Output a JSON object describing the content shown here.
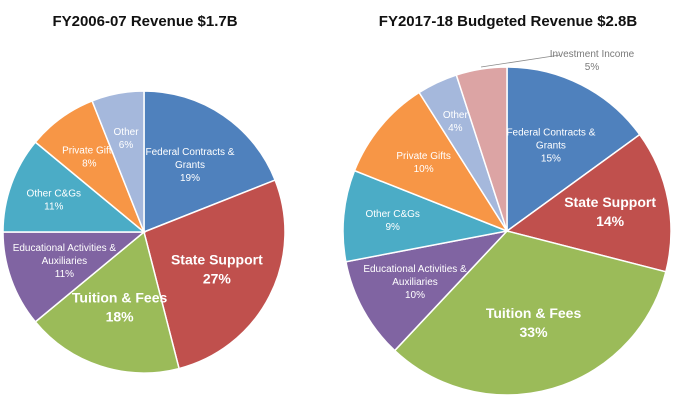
{
  "colors": {
    "federal": "#4f81bd",
    "state": "#c0504d",
    "tuition": "#9bbb59",
    "educational": "#8064a2",
    "other_cg": "#4bacc6",
    "private": "#f79646",
    "other": "#a5b8dc",
    "investment": "#dca4a4",
    "stroke": "#ffffff",
    "callout": "#8a8a8a"
  },
  "chart_data": [
    {
      "type": "pie",
      "title": "FY2006-07 Revenue $1.7B",
      "slices": [
        {
          "label": "Federal Contracts & Grants",
          "lines": [
            "Federal Contracts &",
            "Grants"
          ],
          "pct_label": "19%",
          "value": 19,
          "color": "#4f81bd"
        },
        {
          "label": "State Support",
          "lines": [
            "State Support"
          ],
          "pct_label": "27%",
          "value": 27,
          "color": "#c0504d"
        },
        {
          "label": "Tuition & Fees",
          "lines": [
            "Tuition & Fees"
          ],
          "pct_label": "18%",
          "value": 18,
          "color": "#9bbb59"
        },
        {
          "label": "Educational Activities & Auxiliaries",
          "lines": [
            "Educational Activities &",
            "Auxiliaries"
          ],
          "pct_label": "11%",
          "value": 11,
          "color": "#8064a2"
        },
        {
          "label": "Other C&Gs",
          "lines": [
            "Other C&Gs"
          ],
          "pct_label": "11%",
          "value": 11,
          "color": "#4bacc6"
        },
        {
          "label": "Private Gifts",
          "lines": [
            "Private Gifts"
          ],
          "pct_label": "8%",
          "value": 8,
          "color": "#f79646"
        },
        {
          "label": "Other",
          "lines": [
            "Other"
          ],
          "pct_label": "6%",
          "value": 6,
          "color": "#a5b8dc"
        }
      ]
    },
    {
      "type": "pie",
      "title": "FY2017-18 Budgeted Revenue $2.8B",
      "slices": [
        {
          "label": "Federal Contracts & Grants",
          "lines": [
            "Federal Contracts &",
            "Grants"
          ],
          "pct_label": "15%",
          "value": 15,
          "color": "#4f81bd"
        },
        {
          "label": "State Support",
          "lines": [
            "State Support"
          ],
          "pct_label": "14%",
          "value": 14,
          "color": "#c0504d"
        },
        {
          "label": "Tuition & Fees",
          "lines": [
            "Tuition & Fees"
          ],
          "pct_label": "33%",
          "value": 33,
          "color": "#9bbb59"
        },
        {
          "label": "Educational Activities & Auxiliaries",
          "lines": [
            "Educational Activities &",
            "Auxiliaries"
          ],
          "pct_label": "10%",
          "value": 10,
          "color": "#8064a2"
        },
        {
          "label": "Other C&Gs",
          "lines": [
            "Other C&Gs"
          ],
          "pct_label": "9%",
          "value": 9,
          "color": "#4bacc6"
        },
        {
          "label": "Private Gifts",
          "lines": [
            "Private Gifts"
          ],
          "pct_label": "10%",
          "value": 10,
          "color": "#f79646"
        },
        {
          "label": "Other",
          "lines": [
            "Other"
          ],
          "pct_label": "4%",
          "value": 4,
          "color": "#a5b8dc"
        },
        {
          "label": "Investment Income",
          "lines": [
            "Investment Income"
          ],
          "pct_label": "5%",
          "value": 5,
          "color": "#dca4a4"
        }
      ]
    }
  ]
}
